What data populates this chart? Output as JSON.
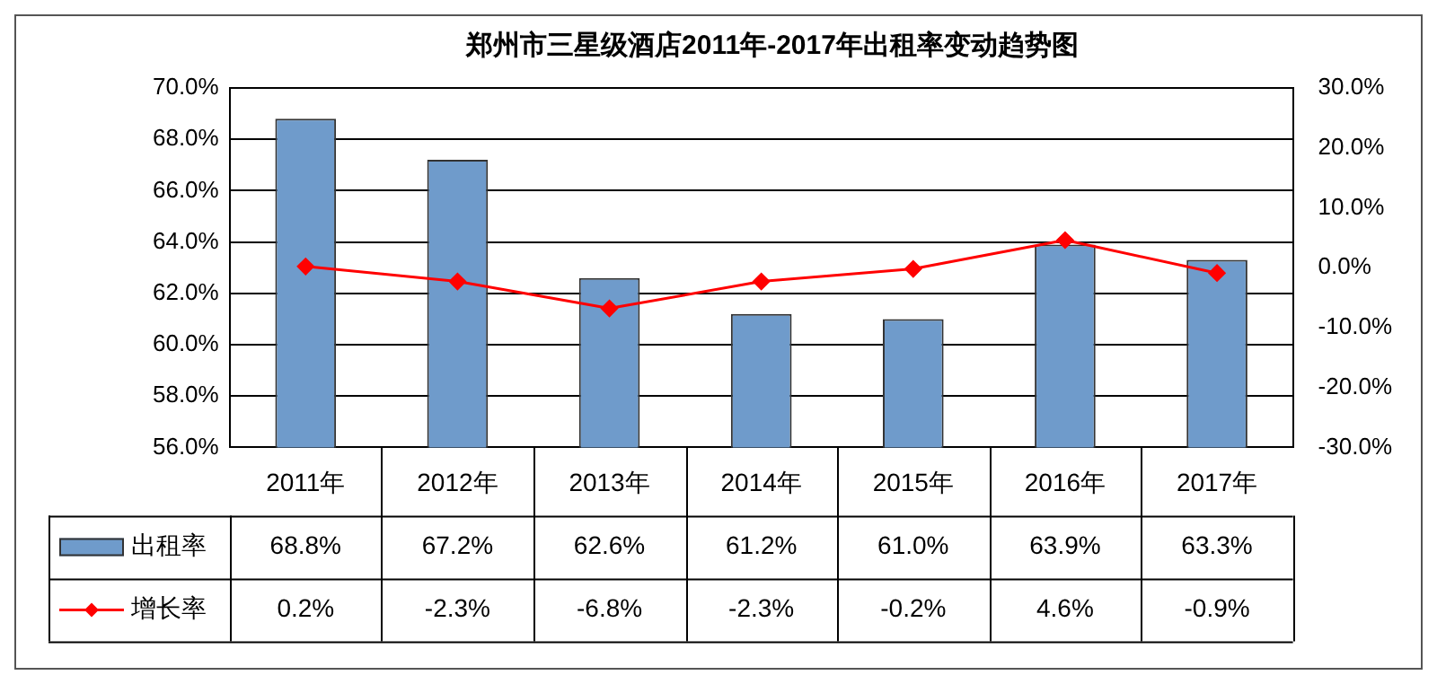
{
  "chart_data": {
    "type": "bar",
    "title": "郑州市三星级酒店2011年-2017年出租率变动趋势图",
    "categories": [
      "2011年",
      "2012年",
      "2013年",
      "2014年",
      "2015年",
      "2016年",
      "2017年"
    ],
    "series": [
      {
        "name": "出租率",
        "color": "#6f9bcb",
        "values": [
          68.8,
          67.2,
          62.6,
          61.2,
          61.0,
          63.9,
          63.3
        ],
        "value_labels": [
          "68.8%",
          "67.2%",
          "62.6%",
          "61.2%",
          "61.0%",
          "63.9%",
          "63.3%"
        ]
      },
      {
        "name": "增长率",
        "type": "line",
        "axis": "y2",
        "color": "#ff0000",
        "marker": "diamond",
        "values": [
          0.2,
          -2.3,
          -6.8,
          -2.3,
          -0.2,
          4.6,
          -0.9
        ],
        "value_labels": [
          "0.2%",
          "-2.3%",
          "-6.8%",
          "-2.3%",
          "-0.2%",
          "4.6%",
          "-0.9%"
        ]
      }
    ],
    "ylim": [
      56,
      70
    ],
    "yticks": [
      {
        "value": 56,
        "label": "56.0%"
      },
      {
        "value": 58,
        "label": "58.0%"
      },
      {
        "value": 60,
        "label": "60.0%"
      },
      {
        "value": 62,
        "label": "62.0%"
      },
      {
        "value": 64,
        "label": "64.0%"
      },
      {
        "value": 66,
        "label": "66.0%"
      },
      {
        "value": 68,
        "label": "68.0%"
      },
      {
        "value": 70,
        "label": "70.0%"
      }
    ],
    "y2lim": [
      -30,
      30
    ],
    "y2ticks": [
      {
        "value": -30,
        "label": "-30.0%"
      },
      {
        "value": -20,
        "label": "-20.0%"
      },
      {
        "value": -10,
        "label": "-10.0%"
      },
      {
        "value": 0,
        "label": "0.0%"
      },
      {
        "value": 10,
        "label": "10.0%"
      },
      {
        "value": 20,
        "label": "20.0%"
      },
      {
        "value": 30,
        "label": "30.0%"
      }
    ],
    "grid": "y",
    "legend": "bottom left"
  }
}
